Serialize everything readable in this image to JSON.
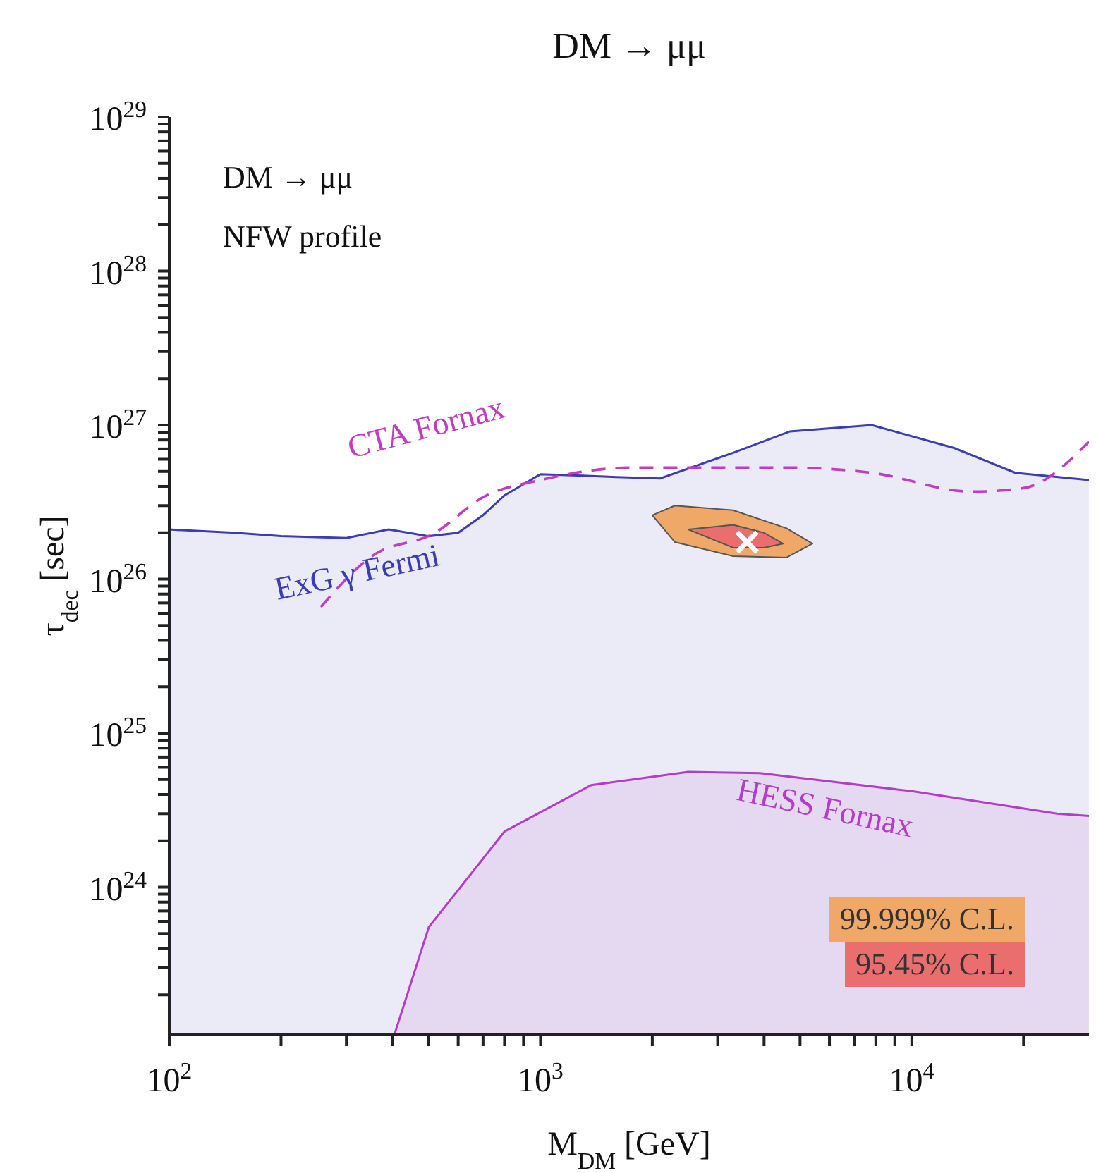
{
  "chart_data": {
    "type": "area",
    "title": "DM → μμ",
    "xlabel": "M$_{DM}$ [GeV]",
    "ylabel": "τ$_{dec}$ [sec]",
    "annotations": [
      "DM → μμ",
      "NFW profile"
    ],
    "log": "xy",
    "legend": "bottom right",
    "xlim": [
      100,
      30000
    ],
    "xticks": [
      {
        "value": 100,
        "label": "10$^{2}$"
      },
      {
        "value": 200,
        "label": null
      },
      {
        "value": 300,
        "label": null
      },
      {
        "value": 400,
        "label": null
      },
      {
        "value": 500,
        "label": null
      },
      {
        "value": 600,
        "label": null
      },
      {
        "value": 700,
        "label": null
      },
      {
        "value": 800,
        "label": null
      },
      {
        "value": 900,
        "label": null
      },
      {
        "value": 1000,
        "label": "10$^{3}$"
      },
      {
        "value": 2000,
        "label": null
      },
      {
        "value": 3000,
        "label": null
      },
      {
        "value": 4000,
        "label": null
      },
      {
        "value": 5000,
        "label": null
      },
      {
        "value": 6000,
        "label": null
      },
      {
        "value": 7000,
        "label": null
      },
      {
        "value": 8000,
        "label": null
      },
      {
        "value": 9000,
        "label": null
      },
      {
        "value": 10000,
        "label": "10$^{4}$"
      },
      {
        "value": 20000,
        "label": null
      }
    ],
    "ylim": [
      1.1e+23,
      1e+29
    ],
    "yticks": [
      {
        "value": 2e+23,
        "label": null
      },
      {
        "value": 3e+23,
        "label": null
      },
      {
        "value": 4e+23,
        "label": null
      },
      {
        "value": 5e+23,
        "label": null
      },
      {
        "value": 6e+23,
        "label": null
      },
      {
        "value": 7e+23,
        "label": null
      },
      {
        "value": 8e+23,
        "label": null
      },
      {
        "value": 9e+23,
        "label": null
      },
      {
        "value": 1e+24,
        "label": "10$^{24}$"
      },
      {
        "value": 2e+24,
        "label": null
      },
      {
        "value": 3e+24,
        "label": null
      },
      {
        "value": 4e+24,
        "label": null
      },
      {
        "value": 5e+24,
        "label": null
      },
      {
        "value": 6e+24,
        "label": null
      },
      {
        "value": 7e+24,
        "label": null
      },
      {
        "value": 8e+24,
        "label": null
      },
      {
        "value": 9e+24,
        "label": null
      },
      {
        "value": 1e+25,
        "label": "10$^{25}$"
      },
      {
        "value": 2e+25,
        "label": null
      },
      {
        "value": 3e+25,
        "label": null
      },
      {
        "value": 4e+25,
        "label": null
      },
      {
        "value": 5e+25,
        "label": null
      },
      {
        "value": 6e+25,
        "label": null
      },
      {
        "value": 7e+25,
        "label": null
      },
      {
        "value": 8e+25,
        "label": null
      },
      {
        "value": 9e+25,
        "label": null
      },
      {
        "value": 1e+26,
        "label": "10$^{26}$"
      },
      {
        "value": 2e+26,
        "label": null
      },
      {
        "value": 3e+26,
        "label": null
      },
      {
        "value": 4e+26,
        "label": null
      },
      {
        "value": 5e+26,
        "label": null
      },
      {
        "value": 6e+26,
        "label": null
      },
      {
        "value": 7e+26,
        "label": null
      },
      {
        "value": 8e+26,
        "label": null
      },
      {
        "value": 9e+26,
        "label": null
      },
      {
        "value": 1e+27,
        "label": "10$^{27}$"
      },
      {
        "value": 2e+27,
        "label": null
      },
      {
        "value": 3e+27,
        "label": null
      },
      {
        "value": 4e+27,
        "label": null
      },
      {
        "value": 5e+27,
        "label": null
      },
      {
        "value": 6e+27,
        "label": null
      },
      {
        "value": 7e+27,
        "label": null
      },
      {
        "value": 8e+27,
        "label": null
      },
      {
        "value": 9e+27,
        "label": null
      },
      {
        "value": 1e+28,
        "label": "10$^{28}$"
      },
      {
        "value": 2e+28,
        "label": null
      },
      {
        "value": 3e+28,
        "label": null
      },
      {
        "value": 4e+28,
        "label": null
      },
      {
        "value": 5e+28,
        "label": null
      },
      {
        "value": 6e+28,
        "label": null
      },
      {
        "value": 7e+28,
        "label": null
      },
      {
        "value": 8e+28,
        "label": null
      },
      {
        "value": 9e+28,
        "label": null
      },
      {
        "value": 1e+29,
        "label": "10$^{29}$"
      }
    ],
    "series": [
      {
        "name": "ExG γ Fermi",
        "color": "#3c3cb4",
        "x": [
          100,
          150,
          200,
          300,
          390,
          500,
          600,
          700,
          800,
          1000,
          1300,
          1600,
          2100,
          3300,
          4700,
          7800,
          13000,
          19000,
          30000
        ],
        "values": [
          2.1e+26,
          2e+26,
          1.9e+26,
          1.85e+26,
          2.1e+26,
          1.9e+26,
          2e+26,
          2.6e+26,
          3.5e+26,
          4.8e+26,
          4.7e+26,
          4.6e+26,
          4.5e+26,
          6.6e+26,
          9.1e+26,
          1e+27,
          7.1e+26,
          4.9e+26,
          4.4e+26
        ]
      },
      {
        "type": "line",
        "line_style": "dashed",
        "name": "CTA Fornax",
        "color": "#c23cc2",
        "x": [
          256,
          350,
          520,
          700,
          1000,
          1780,
          4600,
          7800,
          14500,
          20000,
          30000
        ],
        "values": [
          6.6e+25,
          1.4e+26,
          2e+26,
          3.4e+26,
          4.4e+26,
          5.3e+26,
          5.3e+26,
          4.9e+26,
          3.7e+26,
          3.9e+26,
          7.8e+26
        ]
      },
      {
        "name": "HESS Fornax",
        "color": "#b43cc8",
        "x": [
          404,
          500,
          800,
          1370,
          2500,
          3900,
          10000,
          24600,
          30000
        ],
        "values": [
          1.1e+23,
          5.5e+23,
          2.3e+24,
          4.6e+24,
          5.6e+24,
          5.5e+24,
          4.2e+24,
          3e+24,
          2.9e+24
        ]
      },
      {
        "marker": "none",
        "name": "99.999% C.L.",
        "color": "#f0a868",
        "x": [
          2000,
          2300,
          3300,
          4600,
          5400,
          4600,
          3300,
          2300,
          2000
        ],
        "values": [
          2.6e+26,
          3e+26,
          2.8e+26,
          2.14e+26,
          1.7e+26,
          1.38e+26,
          1.41e+26,
          1.74e+26,
          2.6e+26
        ]
      },
      {
        "marker": "none",
        "name": "95.45% C.L.",
        "color": "#eb6e6e",
        "x": [
          2500,
          3300,
          4000,
          4500,
          4000,
          3300,
          2500
        ],
        "values": [
          2.1e+26,
          2.25e+26,
          2e+26,
          1.7e+26,
          1.6e+26,
          1.6e+26,
          2.1e+26
        ]
      },
      {
        "type": "scatter",
        "marker": "cross",
        "color": "#ffffff",
        "x": [
          3600
        ],
        "values": [
          1.74e+26
        ]
      }
    ]
  }
}
